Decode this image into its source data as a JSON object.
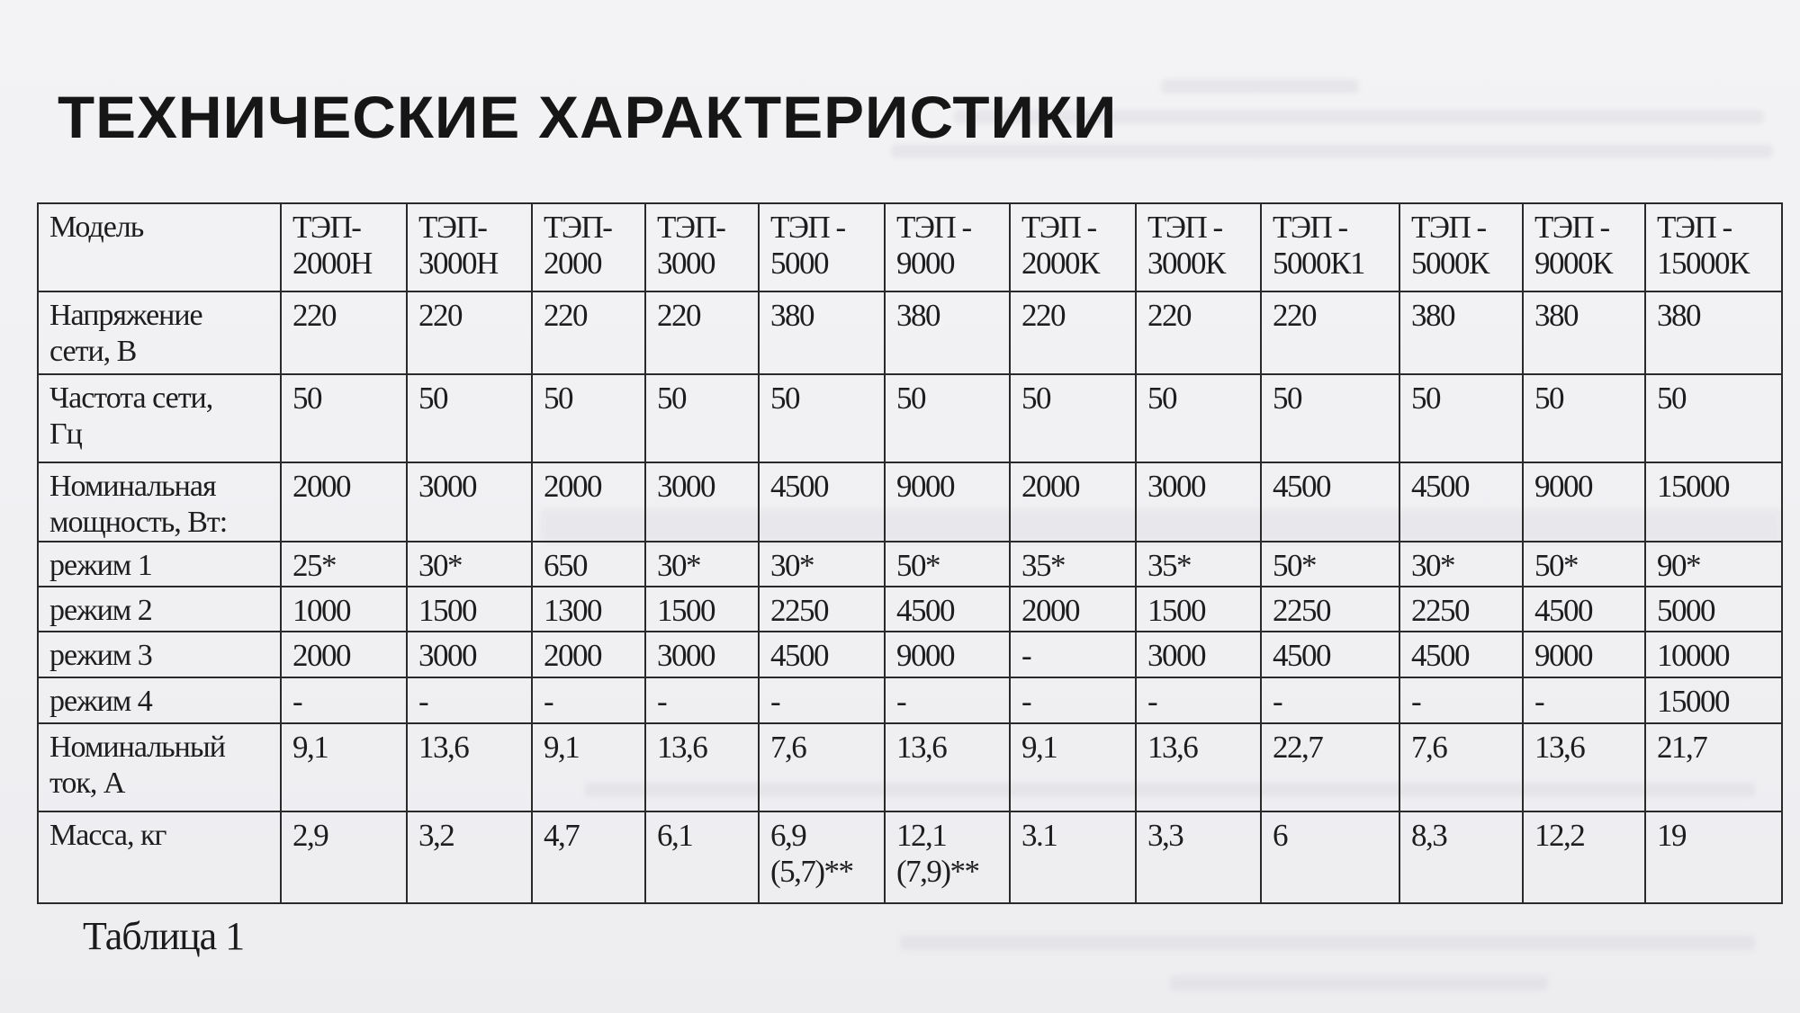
{
  "title": "ТЕХНИЧЕСКИЕ ХАРАКТЕРИСТИКИ",
  "table": {
    "header_label": "Модель",
    "models": [
      "ТЭП-\n2000Н",
      "ТЭП-\n3000Н",
      "ТЭП-\n2000",
      "ТЭП-\n3000",
      "ТЭП -\n5000",
      "ТЭП -\n9000",
      "ТЭП -\n2000К",
      "ТЭП -\n3000К",
      "ТЭП -\n5000К1",
      "ТЭП -\n5000К",
      "ТЭП -\n9000К",
      "ТЭП -\n15000К"
    ],
    "rows": [
      {
        "label": "Напряжение\nсети, В",
        "values": [
          "220",
          "220",
          "220",
          "220",
          "380",
          "380",
          "220",
          "220",
          "220",
          "380",
          "380",
          "380"
        ]
      },
      {
        "label": "Частота сети,\nГц",
        "values": [
          "50",
          "50",
          "50",
          "50",
          "50",
          "50",
          "50",
          "50",
          "50",
          "50",
          "50",
          "50"
        ]
      },
      {
        "label": "Номинальная\nмощность, Вт:",
        "values": [
          "2000",
          "3000",
          "2000",
          "3000",
          "4500",
          "9000",
          "2000",
          "3000",
          "4500",
          "4500",
          "9000",
          "15000"
        ]
      },
      {
        "label": "режим 1",
        "values": [
          "25*",
          "30*",
          "650",
          "30*",
          "30*",
          "50*",
          "35*",
          "35*",
          "50*",
          "30*",
          "50*",
          "90*"
        ]
      },
      {
        "label": "режим 2",
        "values": [
          "1000",
          "1500",
          "1300",
          "1500",
          "2250",
          "4500",
          "2000",
          "1500",
          "2250",
          "2250",
          "4500",
          "5000"
        ]
      },
      {
        "label": "режим 3",
        "values": [
          "2000",
          "3000",
          "2000",
          "3000",
          "4500",
          "9000",
          "-",
          "3000",
          "4500",
          "4500",
          "9000",
          "10000"
        ]
      },
      {
        "label": "режим 4",
        "values": [
          "-",
          "-",
          "-",
          "-",
          "-",
          "-",
          "-",
          "-",
          "-",
          "-",
          "-",
          "15000"
        ]
      },
      {
        "label": "Номинальный\nток, А",
        "values": [
          "9,1",
          "13,6",
          "9,1",
          "13,6",
          "7,6",
          "13,6",
          "9,1",
          "13,6",
          "22,7",
          "7,6",
          "13,6",
          "21,7"
        ]
      },
      {
        "label": "Масса, кг",
        "values": [
          "2,9",
          "3,2",
          "4,7",
          "6,1",
          "6,9\n(5,7)**",
          "12,1\n(7,9)**",
          "3.1",
          "3,3",
          "6",
          "8,3",
          "12,2",
          "19"
        ]
      }
    ]
  },
  "caption": "Таблица 1"
}
